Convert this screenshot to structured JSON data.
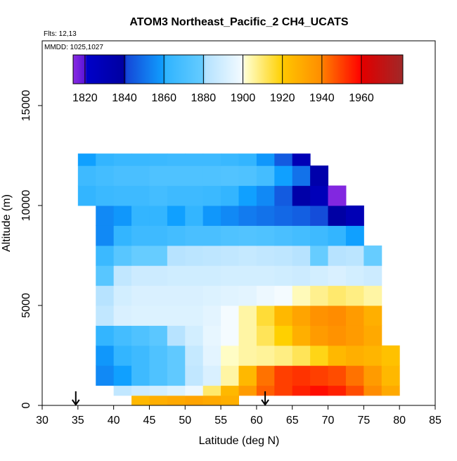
{
  "chart_data": {
    "type": "heatmap",
    "title": "ATOM3 Northeast_Pacific_2 CH4_UCATS",
    "annotations": [
      "Flts: 12,13",
      "MMDD: 1025,1027"
    ],
    "xlabel": "Latitude (deg N)",
    "ylabel": "Altitude (m)",
    "xlim": [
      30,
      85
    ],
    "xticks": [
      30,
      35,
      40,
      45,
      50,
      55,
      60,
      65,
      70,
      75,
      80,
      85
    ],
    "ylim": [
      0,
      18240
    ],
    "yticks": [
      0,
      5000,
      10000,
      15000
    ],
    "x_edges": [
      35,
      37.5,
      40,
      42.5,
      45,
      47.5,
      50,
      52.5,
      55,
      57.5,
      60,
      62.5,
      65,
      67.5,
      70,
      72.5,
      75,
      77.5,
      80
    ],
    "y_edges": [
      0,
      500,
      1000,
      2000,
      3000,
      4000,
      5000,
      6000,
      7000,
      8000,
      9000,
      10000,
      11000,
      12000,
      12600
    ],
    "values": [
      [
        null,
        null,
        null,
        1925,
        1928,
        1930,
        1932,
        1930,
        1928,
        null,
        null,
        null,
        null,
        null,
        null,
        null,
        null,
        null
      ],
      [
        null,
        null,
        1885,
        1888,
        1890,
        1893,
        1898,
        1910,
        1925,
        1935,
        1945,
        1950,
        1955,
        1958,
        1955,
        1948,
        1940,
        1930
      ],
      [
        null,
        1855,
        1860,
        1866,
        1872,
        1878,
        1885,
        1892,
        1905,
        1925,
        1942,
        1950,
        1952,
        1950,
        1948,
        1942,
        1935,
        1925
      ],
      [
        null,
        1858,
        1862,
        1866,
        1872,
        1878,
        1886,
        1895,
        1902,
        1905,
        1906,
        1908,
        1912,
        1918,
        1925,
        1928,
        1926,
        1922
      ],
      [
        null,
        1862,
        1868,
        1872,
        1876,
        1882,
        1890,
        1896,
        1900,
        1905,
        1912,
        1920,
        1928,
        1935,
        1938,
        1935,
        1930,
        null
      ],
      [
        null,
        1885,
        1892,
        1893,
        1893,
        1893,
        1893,
        1895,
        1900,
        1905,
        1915,
        1925,
        1932,
        1938,
        1940,
        1935,
        1928,
        null
      ],
      [
        null,
        1882,
        1890,
        1892,
        1892,
        1892,
        1892,
        1893,
        1894,
        1895,
        1898,
        1900,
        1903,
        1907,
        1910,
        1908,
        1905,
        null
      ],
      [
        null,
        1875,
        1885,
        1888,
        1888,
        1889,
        1889,
        1889,
        1890,
        1890,
        1890,
        1889,
        1888,
        1890,
        1892,
        1890,
        1888,
        null
      ],
      [
        null,
        1865,
        1875,
        1880,
        1880,
        1882,
        1883,
        1884,
        1885,
        1886,
        1885,
        1884,
        1882,
        1880,
        1882,
        1883,
        1880,
        null
      ],
      [
        null,
        1855,
        1862,
        1866,
        1866,
        1868,
        1870,
        1870,
        1872,
        1873,
        1872,
        1870,
        1868,
        1866,
        1862,
        1860,
        null,
        null
      ],
      [
        null,
        1855,
        1858,
        1862,
        1862,
        1860,
        1862,
        1858,
        1855,
        1852,
        1850,
        1848,
        1846,
        1842,
        1838,
        1830,
        null,
        null
      ],
      [
        1862,
        1865,
        1866,
        1866,
        1868,
        1866,
        1866,
        1865,
        1862,
        1860,
        1855,
        1845,
        1836,
        1828,
        1815,
        null,
        null,
        null
      ],
      [
        1866,
        1868,
        1870,
        1870,
        1872,
        1872,
        1872,
        1872,
        1873,
        1872,
        1868,
        1860,
        1850,
        1835,
        null,
        null,
        null,
        null
      ],
      [
        1860,
        1862,
        1864,
        1864,
        1865,
        1866,
        1866,
        1866,
        1864,
        1862,
        1858,
        1845,
        1830,
        null,
        null,
        null,
        null,
        null
      ]
    ],
    "colorbar": {
      "lim": [
        1814,
        1981
      ],
      "ticks": [
        1820,
        1840,
        1860,
        1880,
        1900,
        1920,
        1940,
        1960
      ],
      "stops": [
        [
          1814,
          "#8a2be2"
        ],
        [
          1820,
          "#5a14d8"
        ],
        [
          1821,
          "#0000c8"
        ],
        [
          1840,
          "#0000a0"
        ],
        [
          1841,
          "#1448d8"
        ],
        [
          1860,
          "#10a0ff"
        ],
        [
          1861,
          "#30b4ff"
        ],
        [
          1880,
          "#66ccff"
        ],
        [
          1881,
          "#b4e2ff"
        ],
        [
          1900,
          "#f4fbff"
        ],
        [
          1901,
          "#ffffd0"
        ],
        [
          1920,
          "#ffd000"
        ],
        [
          1921,
          "#ffc400"
        ],
        [
          1940,
          "#ff8c00"
        ],
        [
          1941,
          "#ff7800"
        ],
        [
          1960,
          "#ff0000"
        ],
        [
          1961,
          "#e00000"
        ],
        [
          1981,
          "#a02828"
        ]
      ]
    },
    "arrows": [
      34.7,
      61.2
    ]
  }
}
